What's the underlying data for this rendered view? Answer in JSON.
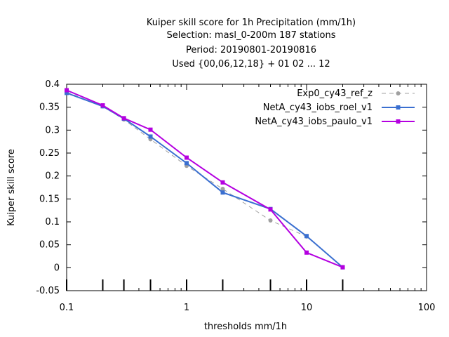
{
  "chart_data": {
    "type": "line",
    "title_lines": [
      "Kuiper skill score  for 1h Precipitation (mm/1h)",
      "Selection: masl_0-200m    187 stations",
      "Period: 20190801-20190816",
      "Used {00,06,12,18} + 01 02 ... 12"
    ],
    "xlabel": "thresholds mm/1h",
    "ylabel": "Kuiper skill score",
    "x_scale": "log",
    "xlim": [
      0.1,
      100
    ],
    "ylim": [
      -0.05,
      0.4
    ],
    "x_ticks": [
      0.1,
      1,
      10,
      100
    ],
    "x_tick_labels": [
      "0.1",
      "1",
      "10",
      "100"
    ],
    "y_ticks": [
      -0.05,
      0,
      0.05,
      0.1,
      0.15,
      0.2,
      0.25,
      0.3,
      0.35,
      0.4
    ],
    "y_tick_labels": [
      "-0.05",
      "0",
      "0.05",
      "0.1",
      "0.15",
      "0.2",
      "0.25",
      "0.3",
      "0.35",
      "0.4"
    ],
    "threshold_markers": [
      0.1,
      0.2,
      0.3,
      0.5,
      1,
      2,
      5,
      10,
      20
    ],
    "grid": false,
    "legend_position": "top-right",
    "x": [
      0.1,
      0.2,
      0.3,
      0.5,
      1,
      2,
      5,
      10,
      20
    ],
    "series": [
      {
        "name": "Exp0_cy43_ref_z",
        "color": "#a0a0a0",
        "dashed": true,
        "marker": "circle",
        "values": [
          0.383,
          0.352,
          0.323,
          0.28,
          0.222,
          0.172,
          0.103,
          0.068,
          0.001
        ]
      },
      {
        "name": "NetA_cy43_iobs_roel_v1",
        "color": "#3a6fd0",
        "dashed": false,
        "marker": "square",
        "values": [
          0.381,
          0.352,
          0.325,
          0.286,
          0.228,
          0.164,
          0.128,
          0.069,
          0.001
        ]
      },
      {
        "name": "NetA_cy43_iobs_paulo_v1",
        "color": "#b400e0",
        "dashed": false,
        "marker": "square",
        "values": [
          0.387,
          0.354,
          0.326,
          0.301,
          0.24,
          0.186,
          0.127,
          0.033,
          0.001
        ]
      }
    ]
  }
}
